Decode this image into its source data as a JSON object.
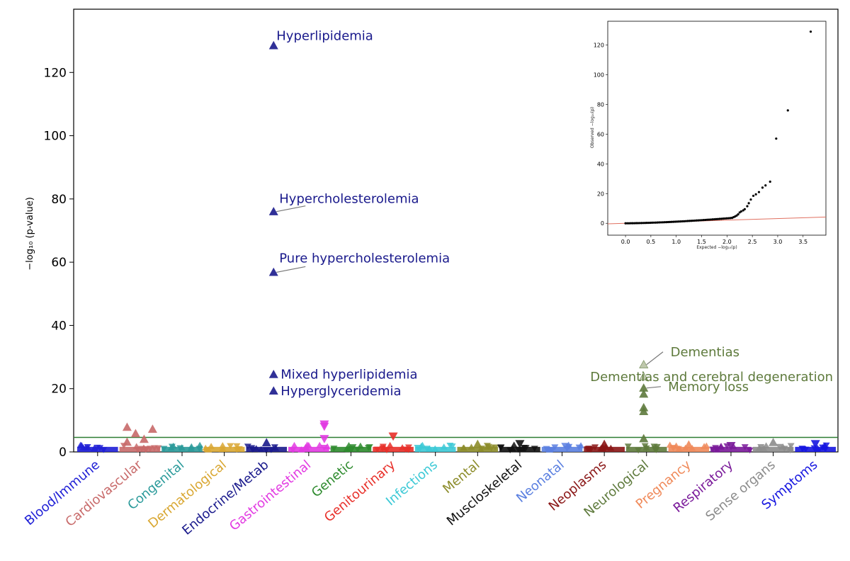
{
  "chart_data": [
    {
      "type": "scatter",
      "title": "",
      "xlabel": "",
      "ylabel": "−log₁₀ (p-value)",
      "ylim": [
        0,
        140
      ],
      "yticks": [
        0,
        20,
        40,
        60,
        80,
        100,
        120
      ],
      "grid": false,
      "significance_threshold": 4.6,
      "categories": [
        {
          "name": "Blood/Immune",
          "color": "#1f1fd6"
        },
        {
          "name": "Cardiovascular",
          "color": "#c86a6a"
        },
        {
          "name": "Congenital",
          "color": "#2a9a9a"
        },
        {
          "name": "Dermatological",
          "color": "#d9a732"
        },
        {
          "name": "Endocrine/Metab",
          "color": "#1a1a8c"
        },
        {
          "name": "Gastrointestinal",
          "color": "#e23ae2"
        },
        {
          "name": "Genetic",
          "color": "#2e8b2e"
        },
        {
          "name": "Genitourinary",
          "color": "#e8302a"
        },
        {
          "name": "Infections",
          "color": "#3cc9d6"
        },
        {
          "name": "Mental",
          "color": "#8c8c2a"
        },
        {
          "name": "Muscloskeletal",
          "color": "#111111"
        },
        {
          "name": "Neonatal",
          "color": "#5a7fe0"
        },
        {
          "name": "Neoplasms",
          "color": "#8a1616"
        },
        {
          "name": "Neurological",
          "color": "#5e7a3c"
        },
        {
          "name": "Pregnancy",
          "color": "#f08a5a"
        },
        {
          "name": "Respiratory",
          "color": "#7a1a9a"
        },
        {
          "name": "Sense organs",
          "color": "#8c8c8c"
        },
        {
          "name": "Symptoms",
          "color": "#1616e0"
        }
      ],
      "points": [
        {
          "category": "Endocrine/Metab",
          "y": 128.5,
          "label": "Hyperlipidemia",
          "marker": "up"
        },
        {
          "category": "Endocrine/Metab",
          "y": 76,
          "label": "Hypercholesterolemia",
          "marker": "up"
        },
        {
          "category": "Endocrine/Metab",
          "y": 56.8,
          "label": "Pure hypercholesterolemia",
          "marker": "up"
        },
        {
          "category": "Endocrine/Metab",
          "y": 24.5,
          "label": "Mixed hyperlipidemia",
          "marker": "up"
        },
        {
          "category": "Endocrine/Metab",
          "y": 19.3,
          "label": "Hyperglyceridemia",
          "marker": "up"
        },
        {
          "category": "Neurological",
          "y": 27.6,
          "label": "Dementias",
          "marker": "up"
        },
        {
          "category": "Neurological",
          "y": 23.8,
          "label": "Dementias and cerebral degeneration",
          "marker": "up"
        },
        {
          "category": "Neurological",
          "y": 20.2,
          "label": "Memory loss",
          "marker": "up"
        },
        {
          "category": "Neurological",
          "y": 18.3,
          "label": "",
          "marker": "up"
        },
        {
          "category": "Neurological",
          "y": 14,
          "label": "",
          "marker": "up"
        },
        {
          "category": "Neurological",
          "y": 12.8,
          "label": "",
          "marker": "up"
        },
        {
          "category": "Neurological",
          "y": 4.2,
          "label": "",
          "marker": "up"
        },
        {
          "category": "Cardiovascular",
          "y": 7.8,
          "label": "",
          "marker": "up"
        },
        {
          "category": "Cardiovascular",
          "y": 5.8,
          "label": "",
          "marker": "up"
        },
        {
          "category": "Cardiovascular",
          "y": 4.0,
          "label": "",
          "marker": "up"
        },
        {
          "category": "Cardiovascular",
          "y": 7.2,
          "label": "",
          "marker": "up"
        },
        {
          "category": "Cardiovascular",
          "y": 3.1,
          "label": "",
          "marker": "up"
        },
        {
          "category": "Gastrointestinal",
          "y": 8.8,
          "label": "",
          "marker": "down"
        },
        {
          "category": "Gastrointestinal",
          "y": 8.1,
          "label": "",
          "marker": "down"
        },
        {
          "category": "Gastrointestinal",
          "y": 4.2,
          "label": "",
          "marker": "down"
        },
        {
          "category": "Genitourinary",
          "y": 5.0,
          "label": "",
          "marker": "down"
        },
        {
          "category": "Endocrine/Metab",
          "y": 2.9,
          "label": "",
          "marker": "up"
        },
        {
          "category": "Sense organs",
          "y": 3.0,
          "label": "",
          "marker": "up"
        },
        {
          "category": "Mental",
          "y": 2.4,
          "label": "",
          "marker": "up"
        },
        {
          "category": "Neoplasms",
          "y": 2.4,
          "label": "",
          "marker": "up"
        },
        {
          "category": "Pregnancy",
          "y": 2.2,
          "label": "",
          "marker": "up"
        },
        {
          "category": "Symptoms",
          "y": 2.6,
          "label": "",
          "marker": "down"
        },
        {
          "category": "Respiratory",
          "y": 2.0,
          "label": "",
          "marker": "down"
        },
        {
          "category": "Muscloskeletal",
          "y": 2.6,
          "label": "",
          "marker": "down"
        }
      ]
    },
    {
      "type": "scatter",
      "title": "",
      "xlabel": "Expected −log₁₀(p)",
      "ylabel": "Observed −log₁₀(p)",
      "xlim": [
        -0.35,
        3.95
      ],
      "ylim": [
        -8,
        136
      ],
      "xticks": [
        0.0,
        0.5,
        1.0,
        1.5,
        2.0,
        2.5,
        3.0,
        3.5
      ],
      "yticks": [
        0,
        20,
        40,
        60,
        80,
        100,
        120
      ],
      "reference_line": {
        "x": [
          -0.35,
          3.95
        ],
        "y": [
          -0.4,
          4.2
        ],
        "color": "#e07060"
      },
      "points": [
        [
          3.65,
          129
        ],
        [
          3.2,
          76
        ],
        [
          2.97,
          57
        ],
        [
          2.85,
          28
        ],
        [
          2.76,
          25.5
        ],
        [
          2.7,
          24
        ],
        [
          2.63,
          21
        ],
        [
          2.57,
          19.5
        ],
        [
          2.52,
          18.5
        ],
        [
          2.47,
          16
        ],
        [
          2.43,
          13.5
        ],
        [
          2.4,
          11.5
        ],
        [
          2.35,
          9.5
        ],
        [
          2.32,
          8.7
        ],
        [
          2.28,
          8.0
        ],
        [
          2.25,
          7.3
        ],
        [
          2.22,
          6.0
        ],
        [
          2.19,
          5.2
        ],
        [
          2.16,
          4.6
        ],
        [
          2.13,
          4.1
        ],
        [
          2.1,
          3.7
        ]
      ],
      "tail": {
        "x_start": 0.0,
        "x_end": 2.1,
        "y_start": 0.0,
        "y_end": 3.6
      }
    }
  ]
}
